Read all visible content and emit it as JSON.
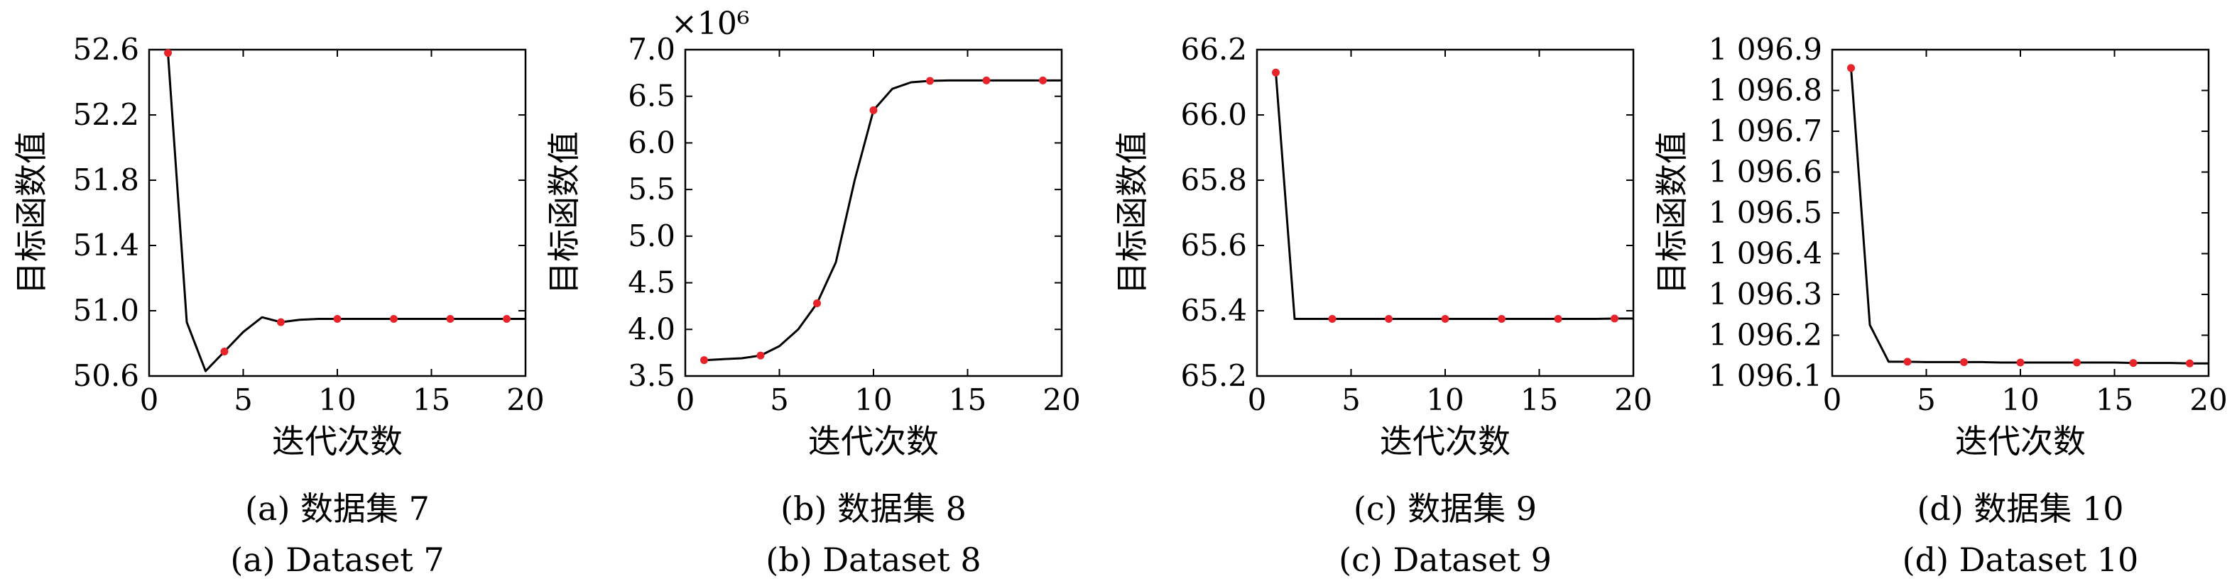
{
  "chart_data": [
    {
      "type": "line",
      "panel": "a",
      "ylabel": "目标函数值",
      "xlabel": "迭代次数",
      "caption_zh": "(a) 数据集 7",
      "caption_en": "(a) Dataset 7",
      "xlim": [
        0,
        20
      ],
      "ylim": [
        50.6,
        52.6
      ],
      "xticks": [
        "0",
        "5",
        "10",
        "15",
        "20"
      ],
      "yticks": [
        "50.6",
        "51.0",
        "51.4",
        "51.8",
        "52.2",
        "52.6"
      ],
      "multiplier": "",
      "series": [
        {
          "x": [
            1,
            2,
            3,
            4,
            5,
            6,
            7,
            8,
            9,
            10,
            11,
            12,
            13,
            14,
            15,
            16,
            17,
            18,
            19,
            20
          ],
          "y": [
            52.58,
            50.93,
            50.63,
            50.75,
            50.87,
            50.96,
            50.93,
            50.945,
            50.95,
            50.95,
            50.95,
            50.95,
            50.95,
            50.95,
            50.95,
            50.95,
            50.95,
            50.95,
            50.95,
            50.95
          ],
          "marker_x": [
            1,
            4,
            7,
            10,
            13,
            16,
            19
          ]
        }
      ]
    },
    {
      "type": "line",
      "panel": "b",
      "ylabel": "目标函数值",
      "xlabel": "迭代次数",
      "caption_zh": "(b) 数据集 8",
      "caption_en": "(b) Dataset 8",
      "xlim": [
        0,
        20
      ],
      "ylim": [
        3.5,
        7.0
      ],
      "xticks": [
        "0",
        "5",
        "10",
        "15",
        "20"
      ],
      "yticks": [
        "3.5",
        "4.0",
        "4.5",
        "5.0",
        "5.5",
        "6.0",
        "6.5",
        "7.0"
      ],
      "multiplier": "×10⁶",
      "series": [
        {
          "x": [
            1,
            2,
            3,
            4,
            5,
            6,
            7,
            8,
            9,
            10,
            11,
            12,
            13,
            14,
            15,
            16,
            17,
            18,
            19,
            20
          ],
          "y": [
            3.67,
            3.68,
            3.69,
            3.72,
            3.82,
            4.0,
            4.28,
            4.72,
            5.6,
            6.35,
            6.58,
            6.65,
            6.665,
            6.67,
            6.67,
            6.67,
            6.67,
            6.67,
            6.67,
            6.67
          ],
          "marker_x": [
            1,
            4,
            7,
            10,
            13,
            16,
            19
          ]
        }
      ]
    },
    {
      "type": "line",
      "panel": "c",
      "ylabel": "目标函数值",
      "xlabel": "迭代次数",
      "caption_zh": "(c) 数据集 9",
      "caption_en": "(c) Dataset 9",
      "xlim": [
        0,
        20
      ],
      "ylim": [
        65.2,
        66.2
      ],
      "xticks": [
        "0",
        "5",
        "10",
        "15",
        "20"
      ],
      "yticks": [
        "65.2",
        "65.4",
        "65.6",
        "65.8",
        "66.0",
        "66.2"
      ],
      "multiplier": "",
      "series": [
        {
          "x": [
            1,
            2,
            3,
            4,
            5,
            6,
            7,
            8,
            9,
            10,
            11,
            12,
            13,
            14,
            15,
            16,
            17,
            18,
            19,
            20
          ],
          "y": [
            66.13,
            65.375,
            65.375,
            65.375,
            65.375,
            65.375,
            65.375,
            65.375,
            65.375,
            65.375,
            65.375,
            65.375,
            65.375,
            65.375,
            65.375,
            65.375,
            65.375,
            65.375,
            65.376,
            65.376
          ],
          "marker_x": [
            1,
            4,
            7,
            10,
            13,
            16,
            19
          ]
        }
      ]
    },
    {
      "type": "line",
      "panel": "d",
      "ylabel": "目标函数值",
      "xlabel": "迭代次数",
      "caption_zh": "(d) 数据集 10",
      "caption_en": "(d) Dataset 10",
      "xlim": [
        0,
        20
      ],
      "ylim": [
        1096.1,
        1096.9
      ],
      "xticks": [
        "0",
        "5",
        "10",
        "15",
        "20"
      ],
      "yticks": [
        "1 096.1",
        "1 096.2",
        "1 096.3",
        "1 096.4",
        "1 096.5",
        "1 096.6",
        "1 096.7",
        "1 096.8",
        "1 096.9"
      ],
      "multiplier": "",
      "series": [
        {
          "x": [
            1,
            2,
            3,
            4,
            5,
            6,
            7,
            8,
            9,
            10,
            11,
            12,
            13,
            14,
            15,
            16,
            17,
            18,
            19,
            20
          ],
          "y": [
            1096.855,
            1096.225,
            1096.135,
            1096.135,
            1096.134,
            1096.134,
            1096.134,
            1096.134,
            1096.133,
            1096.133,
            1096.133,
            1096.133,
            1096.133,
            1096.133,
            1096.133,
            1096.132,
            1096.132,
            1096.132,
            1096.131,
            1096.131
          ],
          "marker_x": [
            1,
            4,
            7,
            10,
            13,
            16,
            19
          ]
        }
      ]
    }
  ],
  "style": {
    "line_color": "#000000",
    "marker_color": "#e8242a",
    "frame_color": "#000000"
  }
}
